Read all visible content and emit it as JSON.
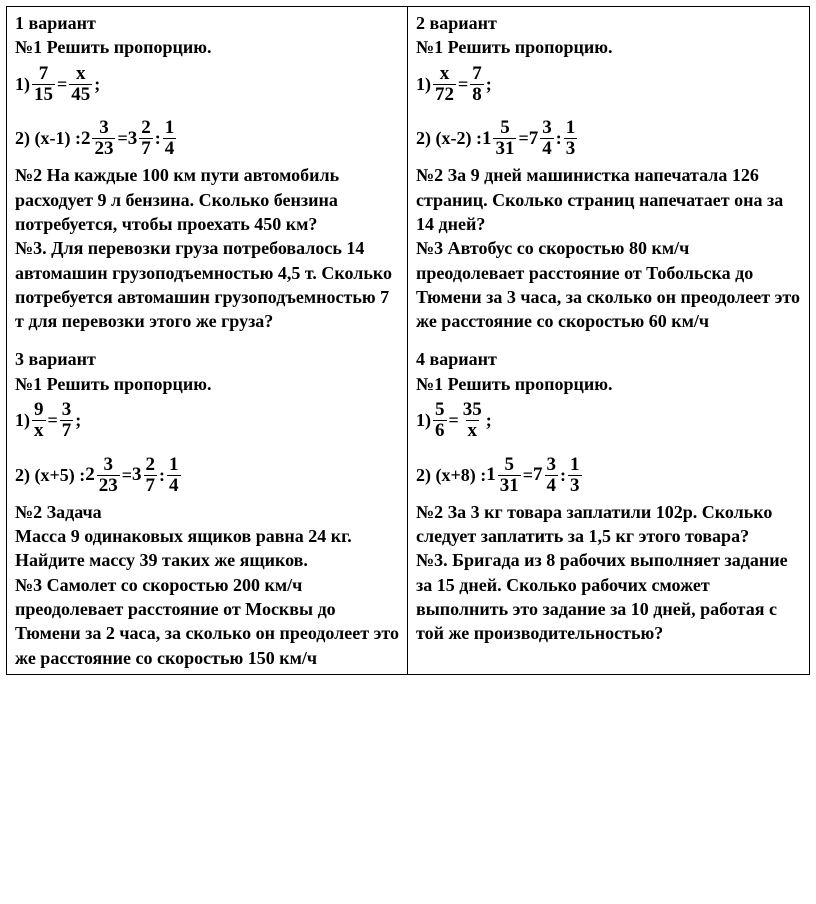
{
  "v1": {
    "title": "1 вариант",
    "task1_title": "№1 Решить пропорцию.",
    "eq1_prefix": "1) ",
    "eq1_a_num": "7",
    "eq1_a_den": "15",
    "eq1_b_num": "x",
    "eq1_b_den": "45",
    "eq2_prefix": "2) (х-1) : ",
    "eq2_m1_whole": "2",
    "eq2_m1_num": "3",
    "eq2_m1_den": "23",
    "eq2_m2_whole": "3",
    "eq2_m2_num": "2",
    "eq2_m2_den": "7",
    "eq2_f_num": "1",
    "eq2_f_den": "4",
    "task2": "№2 На каждые 100 км пути автомобиль расходует 9 л бензина. Сколько бензина потребуется, чтобы проехать 450 км?",
    "task3": "№3. Для перевозки груза потребовалось 14 автомашин грузоподъемностью 4,5 т. Сколько потребуется автомашин грузоподъемностью 7 т для перевозки этого же груза?"
  },
  "v3": {
    "title": "3 вариант",
    "task1_title": "№1 Решить пропорцию.",
    "eq1_prefix": "1) ",
    "eq1_a_num": "9",
    "eq1_a_den": "x",
    "eq1_b_num": "3",
    "eq1_b_den": "7",
    "eq2_prefix": "2) (х+5) : ",
    "eq2_m1_whole": "2",
    "eq2_m1_num": "3",
    "eq2_m1_den": "23",
    "eq2_m2_whole": "3",
    "eq2_m2_num": "2",
    "eq2_m2_den": "7",
    "eq2_f_num": "1",
    "eq2_f_den": "4",
    "task2_title": "№2 Задача",
    "task2": "Масса 9 одинаковых ящиков равна 24 кг. Найдите массу 39 таких же ящиков.",
    "task3": "№3 Самолет со скоростью 200 км/ч преодолевает расстояние от Москвы до Тюмени за 2 часа, за сколько он преодолеет это же расстояние со скоростью 150 км/ч"
  },
  "v2": {
    "title": "2 вариант",
    "task1_title": "№1 Решить пропорцию.",
    "eq1_prefix": "1) ",
    "eq1_a_num": "x",
    "eq1_a_den": "72",
    "eq1_b_num": "7",
    "eq1_b_den": "8",
    "eq2_prefix": "2) (х-2) : ",
    "eq2_m1_whole": "1",
    "eq2_m1_num": "5",
    "eq2_m1_den": "31",
    "eq2_m2_whole": "7",
    "eq2_m2_num": "3",
    "eq2_m2_den": "4",
    "eq2_f_num": "1",
    "eq2_f_den": "3",
    "task2": "№2 За 9 дней машинистка напечатала 126 страниц. Сколько страниц напечатает она за 14 дней?",
    "task3": "№3 Автобус со скоростью 80 км/ч преодолевает расстояние от Тобольска до Тюмени за 3 часа, за сколько он преодолеет это же расстояние со скоростью 60 км/ч"
  },
  "v4": {
    "title": "4 вариант",
    "task1_title": "№1 Решить пропорцию.",
    "eq1_prefix": "1) ",
    "eq1_a_num": "5",
    "eq1_a_den": "6",
    "eq1_b_num": "35",
    "eq1_b_den": "x",
    "eq2_prefix": "2) (х+8) : ",
    "eq2_m1_whole": "1",
    "eq2_m1_num": "5",
    "eq2_m1_den": "31",
    "eq2_m2_whole": "7",
    "eq2_m2_num": "3",
    "eq2_m2_den": "4",
    "eq2_f_num": "1",
    "eq2_f_den": "3",
    "task2": "№2 За 3 кг товара заплатили 102р. Сколько следует заплатить за 1,5 кг этого товара?",
    "task3": "№3. Бригада из 8 рабочих выполняет задание за 15 дней. Сколько рабочих сможет выполнить это задание за 10 дней, работая с той же производительностью?"
  },
  "sym": {
    "eq": " = ",
    "colon": " : ",
    "semi": ";"
  }
}
